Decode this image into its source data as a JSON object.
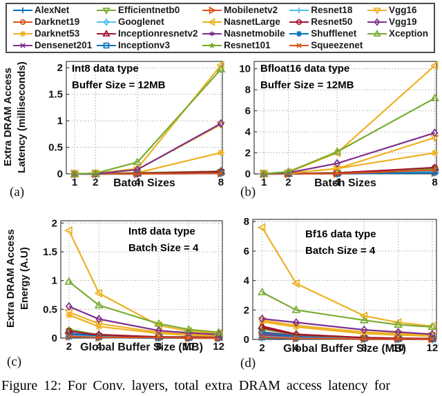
{
  "figure": {
    "caption": "Figure 12: For Conv. layers, total extra DRAM access latency for"
  },
  "palette": {
    "blue": "#0072BD",
    "orange": "#D95319",
    "gold": "#EDB120",
    "purple": "#7E2F8E",
    "green": "#77AC30",
    "cyan": "#4DBEEE",
    "maroon": "#A2142F",
    "grid": "#8a8a8a",
    "axis": "#3c3c3c",
    "text": "#111111"
  },
  "legend": {
    "items": [
      {
        "label": "AlexNet",
        "color": "#0072BD",
        "marker": "+"
      },
      {
        "label": "Darknet19",
        "color": "#D95319",
        "marker": "o"
      },
      {
        "label": "Darknet53",
        "color": "#EDB120",
        "marker": "*"
      },
      {
        "label": "Densenet201",
        "color": "#7E2F8E",
        "marker": "x"
      },
      {
        "label": "Efficientnetb0",
        "color": "#77AC30",
        "marker": "v"
      },
      {
        "label": "Googlenet",
        "color": "#4DBEEE",
        "marker": "d"
      },
      {
        "label": "Inceptionresnetv2",
        "color": "#A2142F",
        "marker": "^"
      },
      {
        "label": "Inceptionv3",
        "color": "#0072BD",
        "marker": "s"
      },
      {
        "label": "Mobilenetv2",
        "color": "#D95319",
        "marker": ">"
      },
      {
        "label": "NasnetLarge",
        "color": "#EDB120",
        "marker": "<"
      },
      {
        "label": "Nasnetmobile",
        "color": "#7E2F8E",
        "marker": "h"
      },
      {
        "label": "Resnet101",
        "color": "#77AC30",
        "marker": "p"
      },
      {
        "label": "Resnet18",
        "color": "#4DBEEE",
        "marker": "+"
      },
      {
        "label": "Resnet50",
        "color": "#A2142F",
        "marker": "o"
      },
      {
        "label": "Shufflenet",
        "color": "#0072BD",
        "marker": "*"
      },
      {
        "label": "Squeezenet",
        "color": "#D95319",
        "marker": "x"
      },
      {
        "label": "Vgg16",
        "color": "#EDB120",
        "marker": "v"
      },
      {
        "label": "Vgg19",
        "color": "#7E2F8E",
        "marker": "d"
      },
      {
        "label": "Xception",
        "color": "#77AC30",
        "marker": "^"
      }
    ]
  },
  "chart_data": [
    {
      "type": "line",
      "sublabel": "(a)",
      "annotation1": "Int8 data type",
      "annotation2": "Buffer Size = 12MB",
      "xlabel": "Batch Sizes",
      "ylabel1": "Extra DRAM Access",
      "ylabel2": "Latency (milliseconds)",
      "x": [
        1,
        2,
        4,
        8
      ],
      "xticks": [
        1,
        2,
        4,
        8
      ],
      "yticks": [
        0,
        0.5,
        1,
        1.5,
        2
      ],
      "xlim": [
        0.6,
        8.07
      ],
      "ylim": [
        0,
        2.12
      ],
      "grid": true,
      "series": [
        {
          "name": "AlexNet",
          "values": [
            0,
            0,
            0,
            0.02
          ]
        },
        {
          "name": "Darknet19",
          "values": [
            0,
            0,
            0.01,
            0.02
          ]
        },
        {
          "name": "Darknet53",
          "values": [
            0,
            0,
            0.02,
            0.4
          ]
        },
        {
          "name": "Densenet201",
          "values": [
            0,
            0,
            0.01,
            0.03
          ]
        },
        {
          "name": "Efficientnetb0",
          "values": [
            0,
            0,
            0,
            0.02
          ]
        },
        {
          "name": "Googlenet",
          "values": [
            0,
            0,
            0,
            0.01
          ]
        },
        {
          "name": "Inceptionresnetv2",
          "values": [
            0,
            0,
            0.01,
            0.05
          ]
        },
        {
          "name": "Inceptionv3",
          "values": [
            0,
            0,
            0.01,
            0.03
          ]
        },
        {
          "name": "Mobilenetv2",
          "values": [
            0,
            0,
            0,
            0.01
          ]
        },
        {
          "name": "NasnetLarge",
          "values": [
            0,
            0.01,
            0.1,
            2.05
          ]
        },
        {
          "name": "Nasnetmobile",
          "values": [
            0,
            0,
            0.01,
            0.02
          ]
        },
        {
          "name": "Resnet101",
          "values": [
            0,
            0,
            0.02,
            0.05
          ]
        },
        {
          "name": "Resnet18",
          "values": [
            0,
            0,
            0,
            0.01
          ]
        },
        {
          "name": "Resnet50",
          "values": [
            0,
            0,
            0.01,
            0.04
          ]
        },
        {
          "name": "Shufflenet",
          "values": [
            0,
            0,
            0,
            0.01
          ]
        },
        {
          "name": "Squeezenet",
          "values": [
            0,
            0,
            0,
            0.01
          ]
        },
        {
          "name": "Vgg16",
          "values": [
            0,
            0,
            0.08,
            0.93
          ]
        },
        {
          "name": "Vgg19",
          "values": [
            0,
            0,
            0.08,
            0.95
          ]
        },
        {
          "name": "Xception",
          "values": [
            0,
            0.01,
            0.22,
            1.97
          ]
        }
      ]
    },
    {
      "type": "line",
      "sublabel": "(b)",
      "annotation1": "Bfloat16 data type",
      "annotation2": "Buffer Size = 12MB",
      "xlabel": "Batch Sizes",
      "x": [
        1,
        2,
        4,
        8
      ],
      "xticks": [
        1,
        2,
        4,
        8
      ],
      "yticks": [
        0,
        2,
        4,
        6,
        8,
        10
      ],
      "xlim": [
        0.6,
        8.07
      ],
      "ylim": [
        0,
        10.7
      ],
      "grid": true,
      "series": [
        {
          "name": "AlexNet",
          "values": [
            0,
            0,
            0.02,
            0.15
          ]
        },
        {
          "name": "Darknet19",
          "values": [
            0,
            0.01,
            0.05,
            0.3
          ]
        },
        {
          "name": "Darknet53",
          "values": [
            0,
            0.05,
            0.5,
            2.0
          ]
        },
        {
          "name": "Densenet201",
          "values": [
            0,
            0.02,
            0.1,
            0.45
          ]
        },
        {
          "name": "Efficientnetb0",
          "values": [
            0,
            0,
            0.02,
            0.2
          ]
        },
        {
          "name": "Googlenet",
          "values": [
            0,
            0,
            0.02,
            0.15
          ]
        },
        {
          "name": "Inceptionresnetv2",
          "values": [
            0,
            0.02,
            0.1,
            0.55
          ]
        },
        {
          "name": "Inceptionv3",
          "values": [
            0,
            0.01,
            0.05,
            0.3
          ]
        },
        {
          "name": "Mobilenetv2",
          "values": [
            0,
            0,
            0.02,
            0.1
          ]
        },
        {
          "name": "NasnetLarge",
          "values": [
            0.02,
            0.15,
            2.0,
            10.3
          ]
        },
        {
          "name": "Nasnetmobile",
          "values": [
            0,
            0,
            0.02,
            0.15
          ]
        },
        {
          "name": "Resnet101",
          "values": [
            0,
            0.02,
            0.1,
            0.5
          ]
        },
        {
          "name": "Resnet18",
          "values": [
            0,
            0,
            0.02,
            0.2
          ]
        },
        {
          "name": "Resnet50",
          "values": [
            0,
            0.01,
            0.08,
            0.6
          ]
        },
        {
          "name": "Shufflenet",
          "values": [
            0,
            0,
            0.01,
            0.1
          ]
        },
        {
          "name": "Squeezenet",
          "values": [
            0,
            0,
            0.02,
            0.35
          ]
        },
        {
          "name": "Vgg16",
          "values": [
            0,
            0.05,
            0.5,
            3.45
          ]
        },
        {
          "name": "Vgg19",
          "values": [
            0.01,
            0.1,
            1.0,
            3.9
          ]
        },
        {
          "name": "Xception",
          "values": [
            0.02,
            0.2,
            2.1,
            7.2
          ]
        }
      ]
    },
    {
      "type": "line",
      "sublabel": "(c)",
      "annotation1": "Int8 data type",
      "annotation2": "Batch Size = 4",
      "xlabel": "Global Buffer Size (MB)",
      "ylabel1": "Extra DRAM Access",
      "ylabel2": "Energy (A.U)",
      "x": [
        2,
        4,
        8,
        10,
        12
      ],
      "xticks": [
        2,
        4,
        8,
        10,
        12
      ],
      "yticks": [
        0,
        0.5,
        1,
        1.5,
        2
      ],
      "xlim": [
        1.45,
        12.25
      ],
      "ylim": [
        0,
        2.04
      ],
      "grid": true,
      "series": [
        {
          "name": "AlexNet",
          "values": [
            0.03,
            0.01,
            0.01,
            0,
            0
          ]
        },
        {
          "name": "Darknet19",
          "values": [
            0.06,
            0.03,
            0.01,
            0.01,
            0.01
          ]
        },
        {
          "name": "Darknet53",
          "values": [
            0.4,
            0.2,
            0.08,
            0.05,
            0.03
          ]
        },
        {
          "name": "Densenet201",
          "values": [
            0.08,
            0.04,
            0.02,
            0.01,
            0.01
          ]
        },
        {
          "name": "Efficientnetb0",
          "values": [
            0.05,
            0.02,
            0.01,
            0.01,
            0
          ]
        },
        {
          "name": "Googlenet",
          "values": [
            0.04,
            0.02,
            0.01,
            0,
            0
          ]
        },
        {
          "name": "Inceptionresnetv2",
          "values": [
            0.13,
            0.06,
            0.02,
            0.02,
            0.01
          ]
        },
        {
          "name": "Inceptionv3",
          "values": [
            0.08,
            0.03,
            0.02,
            0.01,
            0.01
          ]
        },
        {
          "name": "Mobilenetv2",
          "values": [
            0.03,
            0.01,
            0.01,
            0,
            0
          ]
        },
        {
          "name": "NasnetLarge",
          "values": [
            1.87,
            0.78,
            0.22,
            0.12,
            0.08
          ]
        },
        {
          "name": "Nasnetmobile",
          "values": [
            0.05,
            0.02,
            0.01,
            0.01,
            0
          ]
        },
        {
          "name": "Resnet101",
          "values": [
            0.15,
            0.05,
            0.02,
            0.01,
            0.01
          ]
        },
        {
          "name": "Resnet18",
          "values": [
            0.04,
            0.02,
            0.01,
            0,
            0
          ]
        },
        {
          "name": "Resnet50",
          "values": [
            0.12,
            0.05,
            0.02,
            0.01,
            0.01
          ]
        },
        {
          "name": "Shufflenet",
          "values": [
            0.02,
            0.01,
            0,
            0,
            0
          ]
        },
        {
          "name": "Squeezenet",
          "values": [
            0.03,
            0.01,
            0.01,
            0,
            0
          ]
        },
        {
          "name": "Vgg16",
          "values": [
            0.45,
            0.25,
            0.1,
            0.07,
            0.05
          ]
        },
        {
          "name": "Vgg19",
          "values": [
            0.55,
            0.33,
            0.13,
            0.09,
            0.06
          ]
        },
        {
          "name": "Xception",
          "values": [
            0.98,
            0.57,
            0.25,
            0.15,
            0.1
          ]
        }
      ]
    },
    {
      "type": "line",
      "sublabel": "(d)",
      "annotation1": "Bf16 data type",
      "annotation2": "Batch Size = 4",
      "xlabel": "Global Buffer Size (MB)",
      "x": [
        2,
        4,
        8,
        10,
        12
      ],
      "xticks": [
        2,
        4,
        8,
        10,
        12
      ],
      "yticks": [
        0,
        2,
        4,
        6,
        8
      ],
      "xlim": [
        1.45,
        12.25
      ],
      "ylim": [
        0,
        8.15
      ],
      "grid": true,
      "series": [
        {
          "name": "AlexNet",
          "values": [
            0.15,
            0.08,
            0.03,
            0.02,
            0.02
          ]
        },
        {
          "name": "Darknet19",
          "values": [
            0.35,
            0.15,
            0.06,
            0.04,
            0.03
          ]
        },
        {
          "name": "Darknet53",
          "values": [
            1.2,
            0.85,
            0.4,
            0.3,
            0.22
          ]
        },
        {
          "name": "Densenet201",
          "values": [
            0.5,
            0.25,
            0.1,
            0.07,
            0.05
          ]
        },
        {
          "name": "Efficientnetb0",
          "values": [
            0.3,
            0.12,
            0.05,
            0.03,
            0.02
          ]
        },
        {
          "name": "Googlenet",
          "values": [
            0.25,
            0.1,
            0.04,
            0.03,
            0.02
          ]
        },
        {
          "name": "Inceptionresnetv2",
          "values": [
            0.9,
            0.35,
            0.12,
            0.08,
            0.06
          ]
        },
        {
          "name": "Inceptionv3",
          "values": [
            0.45,
            0.2,
            0.08,
            0.05,
            0.04
          ]
        },
        {
          "name": "Mobilenetv2",
          "values": [
            0.2,
            0.08,
            0.03,
            0.02,
            0.02
          ]
        },
        {
          "name": "NasnetLarge",
          "values": [
            7.6,
            3.8,
            1.6,
            1.15,
            0.9
          ]
        },
        {
          "name": "Nasnetmobile",
          "values": [
            0.3,
            0.12,
            0.05,
            0.03,
            0.02
          ]
        },
        {
          "name": "Resnet101",
          "values": [
            0.7,
            0.3,
            0.1,
            0.07,
            0.05
          ]
        },
        {
          "name": "Resnet18",
          "values": [
            0.2,
            0.1,
            0.04,
            0.03,
            0.02
          ]
        },
        {
          "name": "Resnet50",
          "values": [
            0.8,
            0.32,
            0.12,
            0.08,
            0.06
          ]
        },
        {
          "name": "Shufflenet",
          "values": [
            0.1,
            0.05,
            0.02,
            0.01,
            0.01
          ]
        },
        {
          "name": "Squeezenet",
          "values": [
            0.15,
            0.07,
            0.03,
            0.02,
            0.02
          ]
        },
        {
          "name": "Vgg16",
          "values": [
            1.3,
            0.95,
            0.5,
            0.4,
            0.3
          ]
        },
        {
          "name": "Vgg19",
          "values": [
            1.4,
            1.15,
            0.65,
            0.5,
            0.35
          ]
        },
        {
          "name": "Xception",
          "values": [
            3.2,
            2.0,
            1.3,
            1.0,
            0.85
          ]
        }
      ]
    }
  ]
}
